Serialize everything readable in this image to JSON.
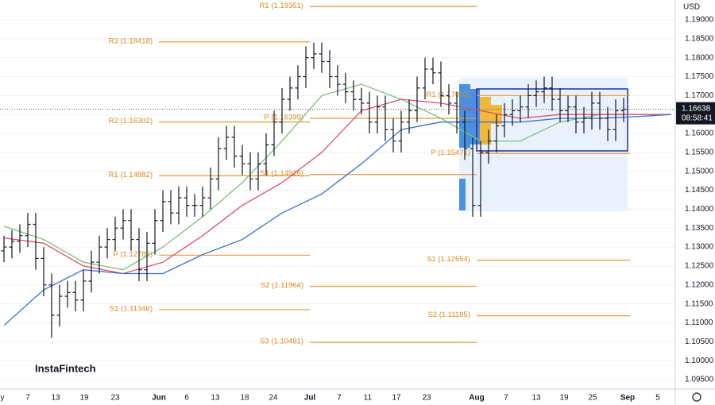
{
  "currency": "USD",
  "watermark": "InstaFintech",
  "chart_data": {
    "type": "ohlc",
    "xlim": [
      -0.5,
      84.5
    ],
    "ylim": [
      1.09248,
      1.19524
    ],
    "yticks": [
      {
        "value": 1.095,
        "label": "1.09500"
      },
      {
        "value": 1.1,
        "label": "1.10000"
      },
      {
        "value": 1.105,
        "label": "1.10500"
      },
      {
        "value": 1.11,
        "label": "1.11000"
      },
      {
        "value": 1.115,
        "label": "1.11500"
      },
      {
        "value": 1.12,
        "label": "1.12000"
      },
      {
        "value": 1.125,
        "label": "1.12500"
      },
      {
        "value": 1.13,
        "label": "1.13000"
      },
      {
        "value": 1.135,
        "label": "1.13500"
      },
      {
        "value": 1.14,
        "label": "1.14000"
      },
      {
        "value": 1.145,
        "label": "1.14500"
      },
      {
        "value": 1.15,
        "label": "1.15000"
      },
      {
        "value": 1.155,
        "label": "1.15500"
      },
      {
        "value": 1.16,
        "label": "1.16000"
      },
      {
        "value": 1.165,
        "label": "1.16500"
      },
      {
        "value": 1.17,
        "label": "1.17000"
      },
      {
        "value": 1.175,
        "label": "1.17500"
      },
      {
        "value": 1.18,
        "label": "1.18000"
      },
      {
        "value": 1.185,
        "label": "1.18500"
      },
      {
        "value": 1.19,
        "label": "1.19000"
      }
    ],
    "x_labels": [
      "y",
      "7",
      "13",
      "19",
      "23",
      "Jun",
      "6",
      "13",
      "18",
      "24",
      "Jul",
      "7",
      "11",
      "17",
      "23",
      "Aug",
      "7",
      "13",
      "19",
      "25",
      "Sep",
      "5"
    ],
    "ohlc": [
      [
        1.129,
        1.133,
        1.126,
        1.13
      ],
      [
        1.13,
        1.1345,
        1.127,
        1.1315
      ],
      [
        1.1315,
        1.136,
        1.1285,
        1.133
      ],
      [
        1.133,
        1.139,
        1.13,
        1.136
      ],
      [
        1.136,
        1.139,
        1.124,
        1.127
      ],
      [
        1.127,
        1.13,
        1.117,
        1.12
      ],
      [
        1.12,
        1.123,
        1.106,
        1.112
      ],
      [
        1.112,
        1.12,
        1.109,
        1.117
      ],
      [
        1.117,
        1.121,
        1.114,
        1.118
      ],
      [
        1.118,
        1.121,
        1.113,
        1.116
      ],
      [
        1.116,
        1.124,
        1.113,
        1.121
      ],
      [
        1.121,
        1.129,
        1.118,
        1.126
      ],
      [
        1.126,
        1.133,
        1.123,
        1.13
      ],
      [
        1.13,
        1.135,
        1.127,
        1.132
      ],
      [
        1.132,
        1.138,
        1.129,
        1.135
      ],
      [
        1.135,
        1.14,
        1.132,
        1.137
      ],
      [
        1.137,
        1.14,
        1.129,
        1.132
      ],
      [
        1.132,
        1.135,
        1.121,
        1.124
      ],
      [
        1.124,
        1.134,
        1.121,
        1.131
      ],
      [
        1.131,
        1.14,
        1.128,
        1.137
      ],
      [
        1.137,
        1.145,
        1.134,
        1.142
      ],
      [
        1.142,
        1.145,
        1.136,
        1.139
      ],
      [
        1.139,
        1.146,
        1.136,
        1.143
      ],
      [
        1.143,
        1.146,
        1.138,
        1.141
      ],
      [
        1.141,
        1.144,
        1.138,
        1.141
      ],
      [
        1.141,
        1.146,
        1.138,
        1.143
      ],
      [
        1.143,
        1.151,
        1.14,
        1.148
      ],
      [
        1.148,
        1.159,
        1.145,
        1.156
      ],
      [
        1.156,
        1.162,
        1.153,
        1.159
      ],
      [
        1.159,
        1.162,
        1.151,
        1.154
      ],
      [
        1.154,
        1.157,
        1.149,
        1.152
      ],
      [
        1.152,
        1.155,
        1.145,
        1.148
      ],
      [
        1.148,
        1.155,
        1.145,
        1.152
      ],
      [
        1.152,
        1.16,
        1.149,
        1.157
      ],
      [
        1.157,
        1.166,
        1.154,
        1.163
      ],
      [
        1.163,
        1.172,
        1.16,
        1.169
      ],
      [
        1.169,
        1.175,
        1.166,
        1.172
      ],
      [
        1.172,
        1.178,
        1.169,
        1.175
      ],
      [
        1.175,
        1.183,
        1.172,
        1.18
      ],
      [
        1.18,
        1.184,
        1.177,
        1.181
      ],
      [
        1.181,
        1.184,
        1.176,
        1.179
      ],
      [
        1.179,
        1.182,
        1.172,
        1.175
      ],
      [
        1.175,
        1.178,
        1.17,
        1.173
      ],
      [
        1.173,
        1.176,
        1.168,
        1.171
      ],
      [
        1.171,
        1.174,
        1.166,
        1.169
      ],
      [
        1.169,
        1.172,
        1.165,
        1.168
      ],
      [
        1.168,
        1.171,
        1.16,
        1.163
      ],
      [
        1.163,
        1.17,
        1.16,
        1.167
      ],
      [
        1.167,
        1.17,
        1.158,
        1.161
      ],
      [
        1.161,
        1.164,
        1.155,
        1.158
      ],
      [
        1.158,
        1.166,
        1.155,
        1.163
      ],
      [
        1.163,
        1.169,
        1.16,
        1.166
      ],
      [
        1.166,
        1.175,
        1.163,
        1.172
      ],
      [
        1.172,
        1.18,
        1.169,
        1.177
      ],
      [
        1.177,
        1.18,
        1.173,
        1.176
      ],
      [
        1.176,
        1.179,
        1.167,
        1.17
      ],
      [
        1.17,
        1.173,
        1.165,
        1.168
      ],
      [
        1.168,
        1.171,
        1.16,
        1.163
      ],
      [
        1.163,
        1.166,
        1.153,
        1.156
      ],
      [
        1.156,
        1.159,
        1.138,
        1.141
      ],
      [
        1.141,
        1.158,
        1.138,
        1.155
      ],
      [
        1.155,
        1.161,
        1.152,
        1.158
      ],
      [
        1.158,
        1.165,
        1.155,
        1.162
      ],
      [
        1.162,
        1.168,
        1.159,
        1.165
      ],
      [
        1.165,
        1.169,
        1.162,
        1.166
      ],
      [
        1.166,
        1.17,
        1.163,
        1.167
      ],
      [
        1.167,
        1.173,
        1.164,
        1.17
      ],
      [
        1.17,
        1.174,
        1.167,
        1.171
      ],
      [
        1.171,
        1.175,
        1.168,
        1.172
      ],
      [
        1.172,
        1.175,
        1.166,
        1.169
      ],
      [
        1.169,
        1.172,
        1.163,
        1.166
      ],
      [
        1.166,
        1.17,
        1.163,
        1.167
      ],
      [
        1.167,
        1.17,
        1.16,
        1.163
      ],
      [
        1.163,
        1.167,
        1.16,
        1.164
      ],
      [
        1.164,
        1.171,
        1.161,
        1.168
      ],
      [
        1.168,
        1.171,
        1.161,
        1.164
      ],
      [
        1.164,
        1.167,
        1.158,
        1.161
      ],
      [
        1.161,
        1.169,
        1.158,
        1.166
      ],
      [
        1.166,
        1.1694,
        1.163,
        1.1664
      ]
    ],
    "ma_x": [
      0,
      5,
      10,
      15,
      20,
      25,
      30,
      35,
      40,
      45,
      50,
      55,
      60,
      65,
      70,
      75,
      80,
      84
    ],
    "moving_averages": [
      {
        "color": "#7fbf7f",
        "values": [
          1.1355,
          1.132,
          1.126,
          1.124,
          1.13,
          1.138,
          1.147,
          1.158,
          1.17,
          1.173,
          1.169,
          1.164,
          1.158,
          1.158,
          1.163,
          1.165,
          1.165,
          1.165
        ]
      },
      {
        "color": "#d9506a",
        "values": [
          1.1324,
          1.131,
          1.125,
          1.123,
          1.126,
          1.133,
          1.141,
          1.147,
          1.155,
          1.166,
          1.169,
          1.168,
          1.166,
          1.164,
          1.165,
          1.165,
          1.165,
          1.165
        ]
      },
      {
        "color": "#3b6fd4",
        "values": [
          1.1093,
          1.1187,
          1.124,
          1.123,
          1.123,
          1.128,
          1.132,
          1.139,
          1.144,
          1.152,
          1.161,
          1.163,
          1.163,
          1.163,
          1.164,
          1.164,
          1.1645,
          1.165
        ]
      }
    ],
    "pivots": [
      {
        "label": "R1 (1.19351)",
        "value": 1.19351
      },
      {
        "label": "R3 (1.18418)",
        "value": 1.18418
      },
      {
        "label": "R2 (1.16302)",
        "value": 1.16302
      },
      {
        "label": "R1 (1.14882)",
        "value": 1.14882
      },
      {
        "label": "P (1.12786)",
        "value": 1.12786
      },
      {
        "label": "S1 (1.11346)",
        "value": 1.11346
      },
      {
        "label": "P (1.16399)",
        "value": 1.16399
      },
      {
        "label": "S1 (1.14916)",
        "value": 1.14916
      },
      {
        "label": "S2 (1.11964)",
        "value": 1.11964
      },
      {
        "label": "S3 (1.10481)",
        "value": 1.10481
      },
      {
        "label": "R1 (1.17001)",
        "value": 1.17001
      },
      {
        "label": "P (1.15471)",
        "value": 1.15471
      },
      {
        "label": "S1 (1.12654)",
        "value": 1.12654
      },
      {
        "label": "S2 (1.11185)",
        "value": 1.11185
      }
    ],
    "last_price": {
      "value": 1.16638,
      "timer": "08:58:41"
    }
  }
}
